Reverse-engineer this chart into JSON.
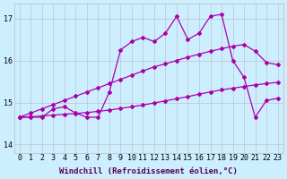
{
  "xlabel": "Windchill (Refroidissement éolien,°C)",
  "background_color": "#cceeff",
  "line_color": "#aa00aa",
  "grid_color": "#bbbbbb",
  "xlim": [
    -0.5,
    23.5
  ],
  "ylim": [
    13.8,
    17.35
  ],
  "yticks": [
    14,
    15,
    16,
    17
  ],
  "xticks": [
    0,
    1,
    2,
    3,
    4,
    5,
    6,
    7,
    8,
    9,
    10,
    11,
    12,
    13,
    14,
    15,
    16,
    17,
    18,
    19,
    20,
    21,
    22,
    23
  ],
  "series": {
    "actual": [
      14.65,
      14.65,
      14.65,
      14.85,
      14.9,
      14.75,
      14.65,
      14.65,
      15.25,
      16.25,
      16.45,
      16.55,
      16.45,
      16.65,
      17.05,
      16.5,
      16.65,
      17.05,
      17.1,
      16.0,
      15.6,
      14.65,
      15.05,
      15.1
    ],
    "reg_upper": [
      14.65,
      14.75,
      14.85,
      14.95,
      15.05,
      15.15,
      15.25,
      15.35,
      15.45,
      15.55,
      15.65,
      15.75,
      15.85,
      15.92,
      16.0,
      16.08,
      16.15,
      16.22,
      16.28,
      16.34,
      16.38,
      16.22,
      15.95,
      15.9
    ],
    "reg_lower": [
      14.65,
      14.66,
      14.68,
      14.7,
      14.72,
      14.74,
      14.76,
      14.79,
      14.82,
      14.86,
      14.9,
      14.94,
      14.99,
      15.04,
      15.09,
      15.14,
      15.2,
      15.25,
      15.3,
      15.34,
      15.38,
      15.42,
      15.45,
      15.48
    ]
  },
  "marker": "D",
  "markersize": 2.0,
  "linewidth": 0.9,
  "xlabel_fontsize": 6.5,
  "tick_fontsize": 6.0
}
